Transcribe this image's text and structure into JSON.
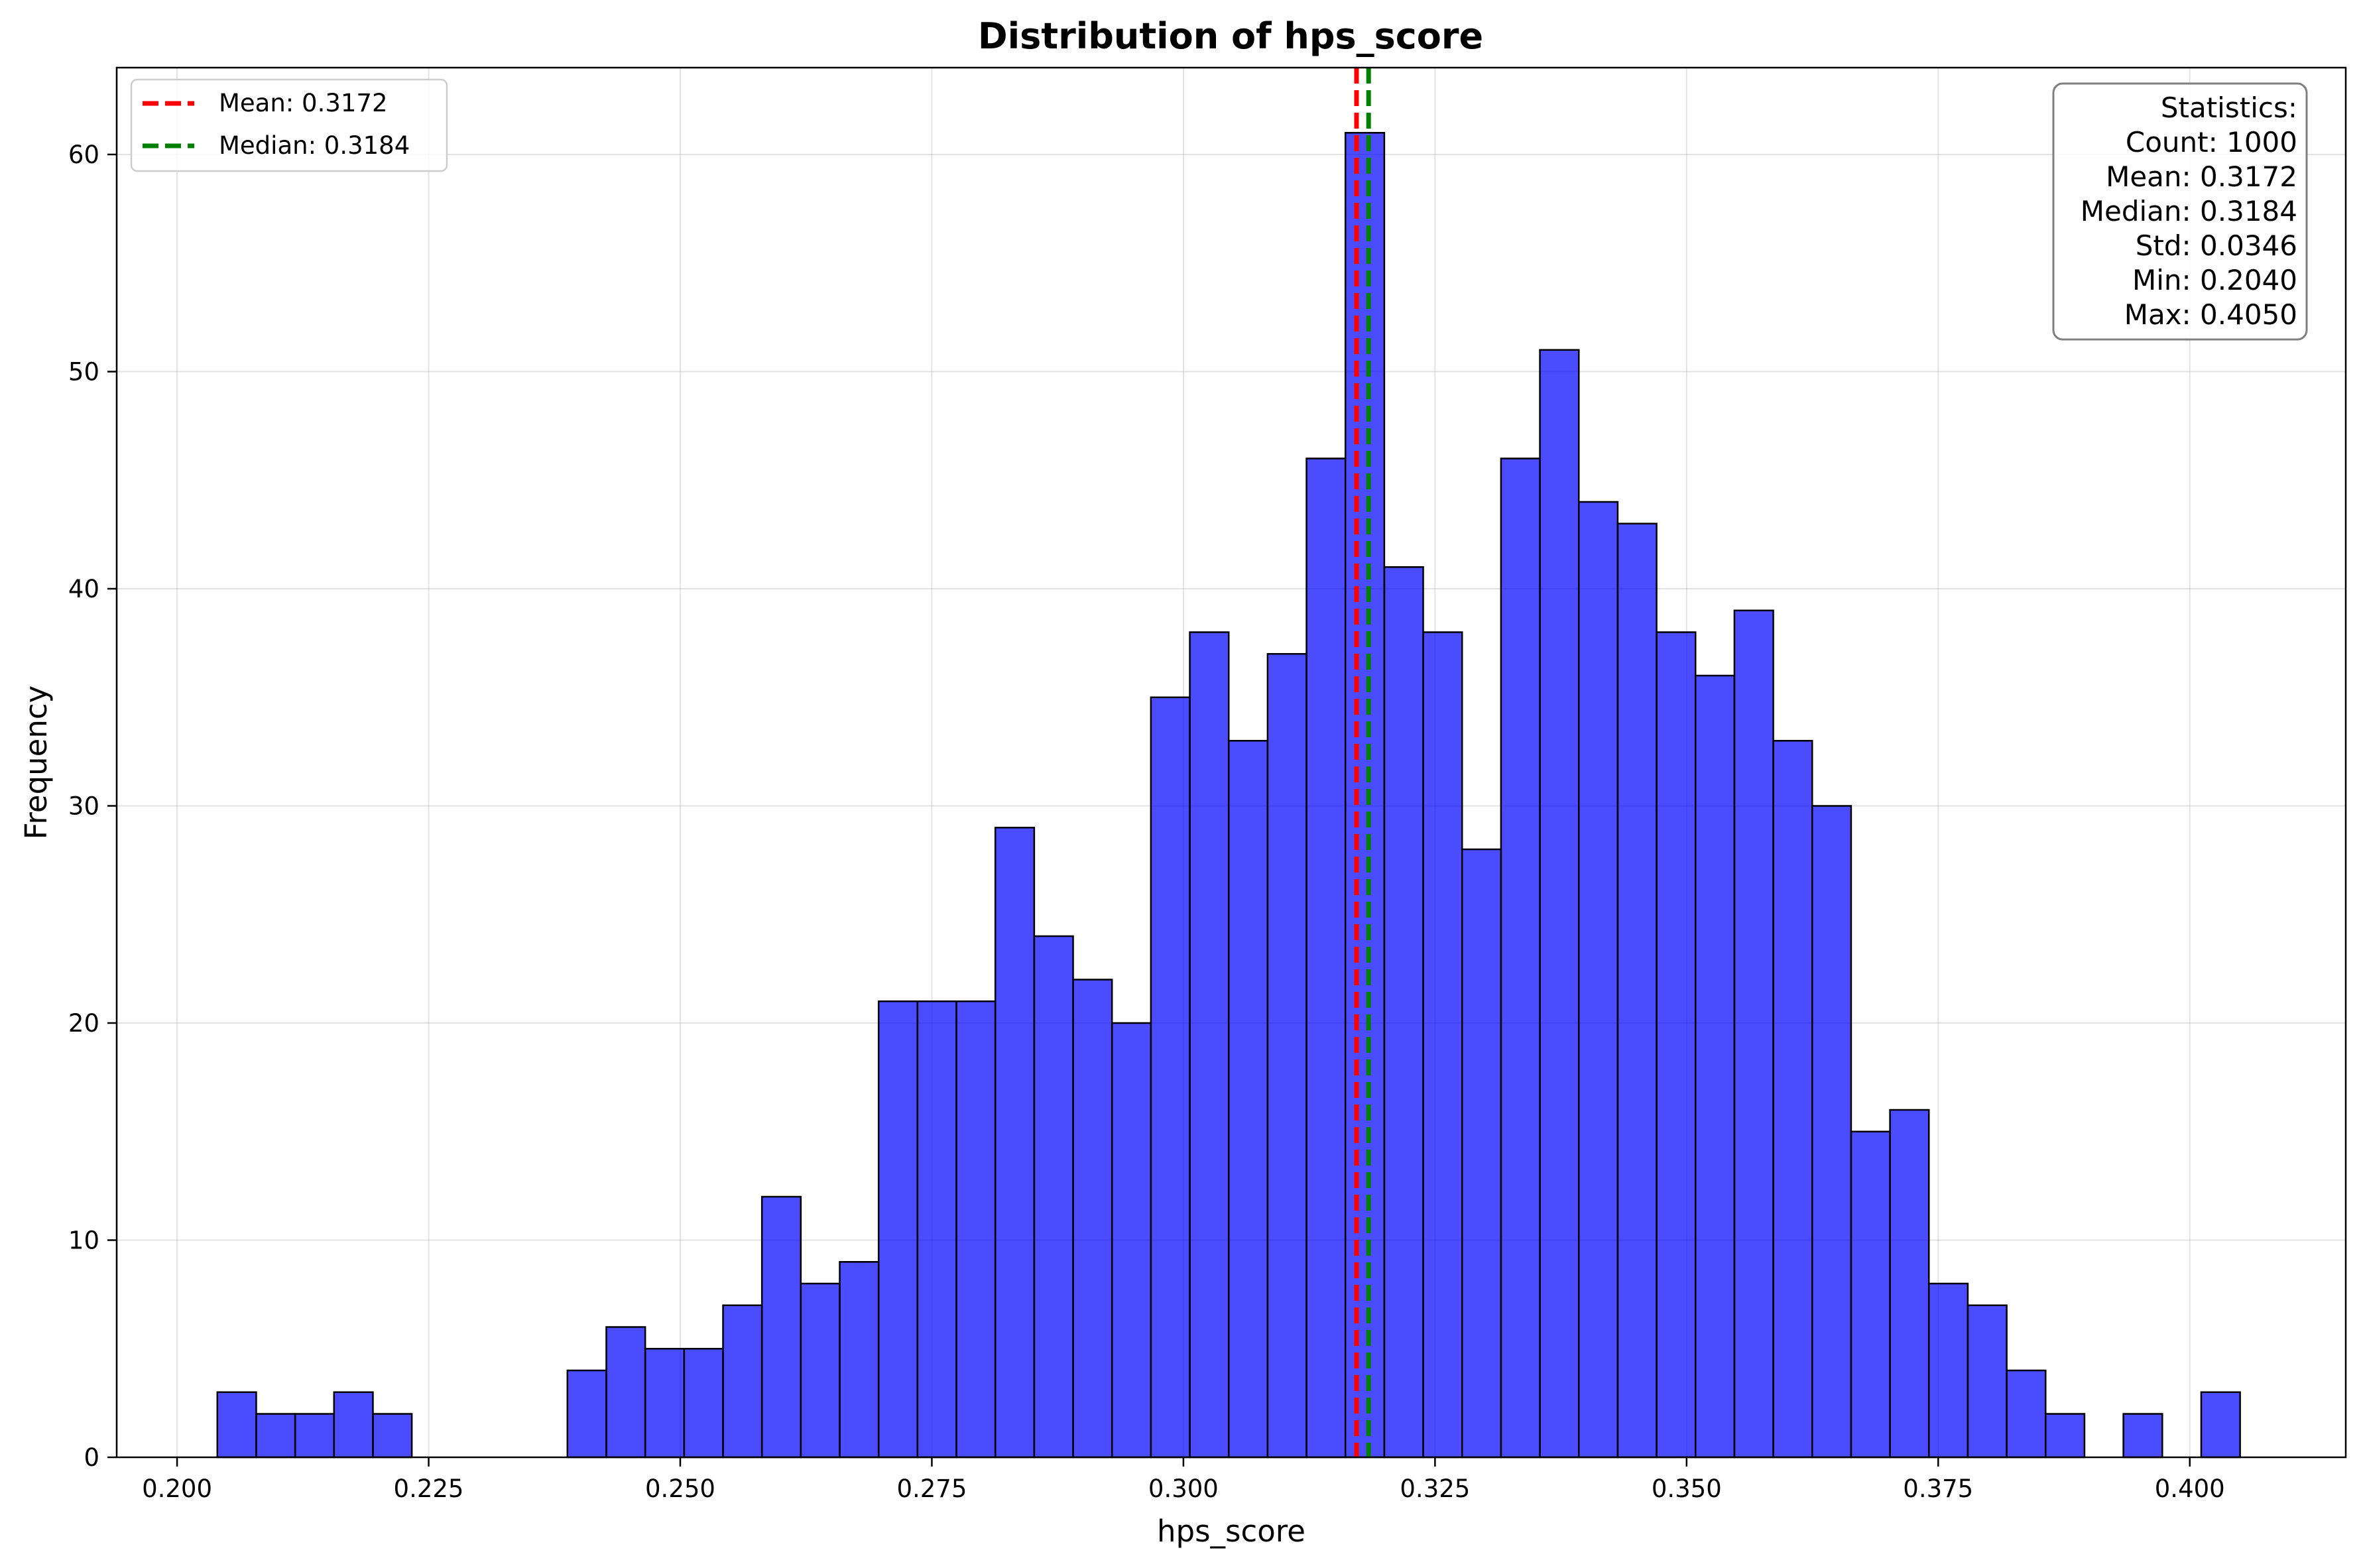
{
  "chart_data": {
    "type": "bar",
    "title": "Distribution of hps_score",
    "xlabel": "hps_score",
    "ylabel": "Frequency",
    "xlim": [
      0.194,
      0.4155
    ],
    "ylim": [
      0,
      64
    ],
    "x_ticks": [
      0.2,
      0.225,
      0.25,
      0.275,
      0.3,
      0.325,
      0.35,
      0.375,
      0.4
    ],
    "x_tick_labels": [
      "0.200",
      "0.225",
      "0.250",
      "0.275",
      "0.300",
      "0.325",
      "0.350",
      "0.375",
      "0.400"
    ],
    "y_ticks": [
      0,
      10,
      20,
      30,
      40,
      50,
      60
    ],
    "y_tick_labels": [
      "0",
      "10",
      "20",
      "30",
      "40",
      "50",
      "60"
    ],
    "grid": true,
    "bins": {
      "start": 0.204,
      "end": 0.405,
      "counts": [
        3,
        2,
        2,
        3,
        2,
        0,
        0,
        0,
        0,
        4,
        6,
        5,
        5,
        7,
        12,
        8,
        9,
        21,
        21,
        21,
        29,
        24,
        22,
        20,
        35,
        38,
        33,
        37,
        46,
        61,
        41,
        38,
        28,
        46,
        51,
        44,
        43,
        38,
        36,
        39,
        33,
        30,
        15,
        16,
        8,
        7,
        4,
        2,
        0,
        2,
        0,
        3
      ]
    },
    "bar_color": "#0000ff",
    "reference_lines": [
      {
        "name": "Mean: 0.3172",
        "value": 0.3172,
        "color": "#ff0000",
        "style": "dashed"
      },
      {
        "name": "Median: 0.3184",
        "value": 0.3184,
        "color": "#008000",
        "style": "dashed"
      }
    ],
    "legend": {
      "placement": "top-left",
      "entries": [
        "Mean: 0.3172",
        "Median: 0.3184"
      ]
    },
    "stats_box": {
      "placement": "top-right",
      "lines": [
        "Statistics:",
        "Count: 1000",
        "Mean: 0.3172",
        "Median: 0.3184",
        "Std: 0.0346",
        "Min: 0.2040",
        "Max: 0.4050"
      ]
    }
  }
}
